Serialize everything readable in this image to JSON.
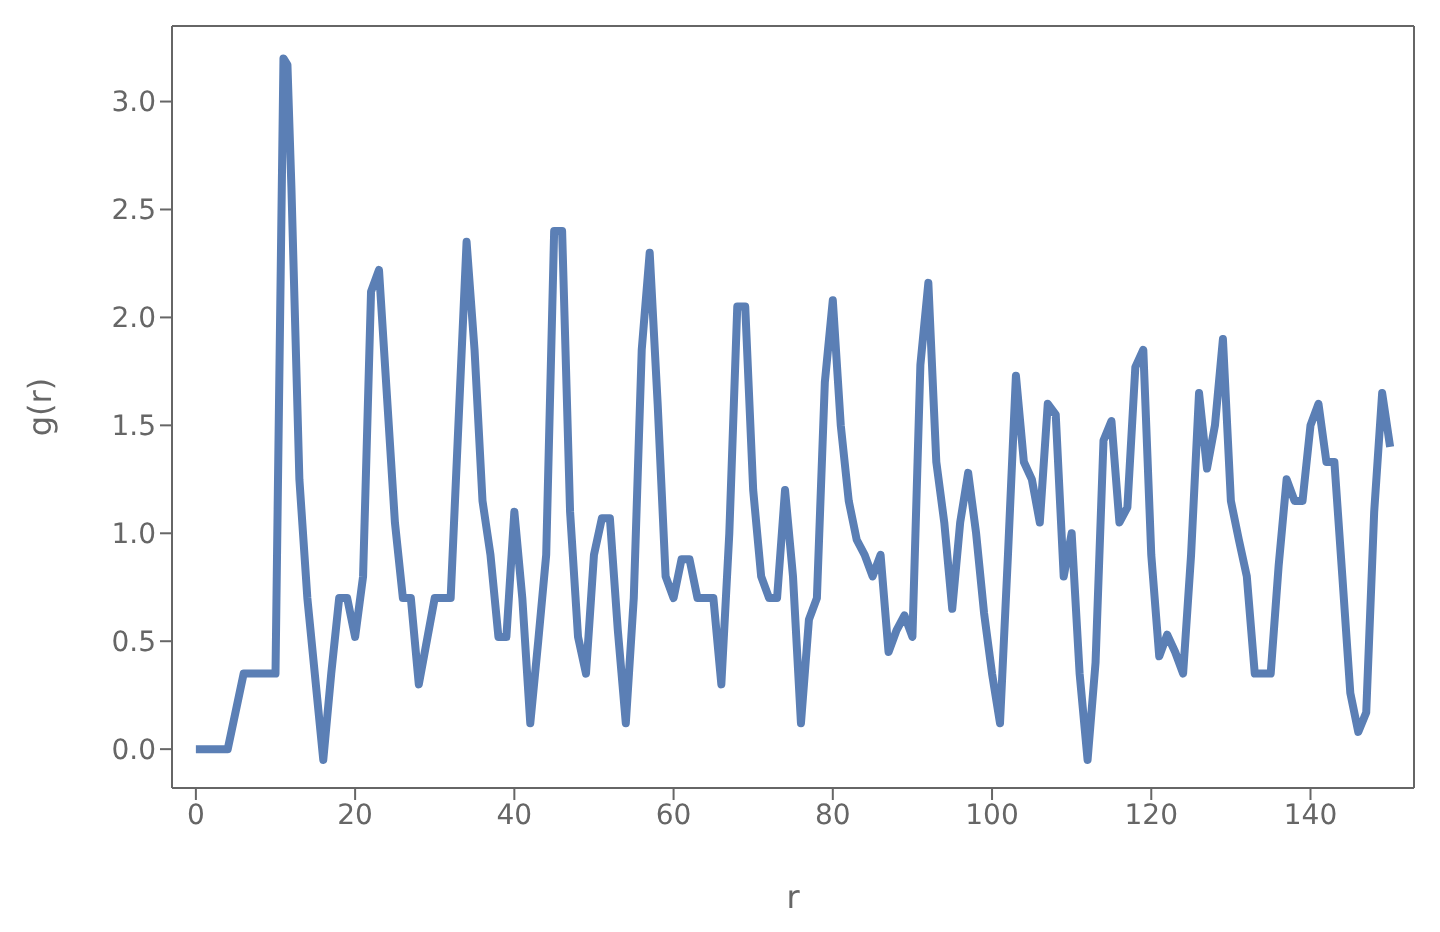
{
  "chart_data": {
    "type": "line",
    "xlabel": "r",
    "ylabel": "g(r)",
    "x": [
      0,
      4,
      6,
      10,
      11,
      11.5,
      12,
      13,
      14,
      16,
      17,
      18,
      19,
      20,
      21,
      22,
      23,
      25,
      26,
      27,
      28,
      30,
      32,
      34,
      35,
      36,
      37,
      38,
      39,
      40,
      41,
      42,
      43,
      44,
      45,
      46,
      47,
      48,
      49,
      50,
      51,
      52,
      53,
      54,
      55,
      56,
      57,
      58,
      59,
      60,
      61,
      62,
      63,
      64,
      65,
      66,
      67,
      68,
      69,
      70,
      71,
      72,
      73,
      74,
      75,
      76,
      77,
      78,
      79,
      80,
      81,
      82,
      83,
      84,
      85,
      86,
      87,
      88,
      89,
      90,
      91,
      92,
      93,
      94,
      95,
      96,
      97,
      98,
      99,
      100,
      101,
      102,
      103,
      104,
      105,
      106,
      107,
      108,
      109,
      110,
      111,
      112,
      113,
      114,
      115,
      116,
      117,
      118,
      119,
      120,
      121,
      122,
      123,
      124,
      125,
      126,
      127,
      128,
      129,
      130,
      131,
      132,
      133,
      135,
      136,
      137,
      138,
      139,
      140,
      141,
      142,
      143,
      144,
      145,
      146,
      147,
      148,
      149,
      150
    ],
    "series": [
      {
        "color": "#5b7fb5",
        "values": [
          0,
          0,
          0.35,
          0.35,
          3.2,
          3.17,
          2.6,
          1.25,
          0.7,
          -0.05,
          0.35,
          0.7,
          0.7,
          0.52,
          0.8,
          2.12,
          2.22,
          1.05,
          0.7,
          0.7,
          0.3,
          0.7,
          0.7,
          2.35,
          1.85,
          1.15,
          0.9,
          0.52,
          0.52,
          1.1,
          0.7,
          0.12,
          0.5,
          0.9,
          2.4,
          2.4,
          1.1,
          0.52,
          0.35,
          0.9,
          1.07,
          1.07,
          0.55,
          0.12,
          0.7,
          1.85,
          2.3,
          1.6,
          0.8,
          0.7,
          0.88,
          0.88,
          0.7,
          0.7,
          0.7,
          0.3,
          1.0,
          2.05,
          2.05,
          1.2,
          0.8,
          0.7,
          0.7,
          1.2,
          0.8,
          0.12,
          0.6,
          0.7,
          1.7,
          2.08,
          1.5,
          1.15,
          0.97,
          0.9,
          0.8,
          0.9,
          0.45,
          0.55,
          0.62,
          0.52,
          1.78,
          2.16,
          1.33,
          1.05,
          0.65,
          1.05,
          1.28,
          1.0,
          0.63,
          0.35,
          0.12,
          0.9,
          1.73,
          1.33,
          1.25,
          1.05,
          1.6,
          1.55,
          0.8,
          1.0,
          0.35,
          -0.05,
          0.4,
          1.43,
          1.52,
          1.05,
          1.12,
          1.77,
          1.85,
          0.9,
          0.43,
          0.53,
          0.45,
          0.35,
          0.9,
          1.65,
          1.3,
          1.5,
          1.9,
          1.15,
          0.97,
          0.8,
          0.35,
          0.35,
          0.85,
          1.25,
          1.15,
          1.15,
          1.5,
          1.6,
          1.33,
          1.33,
          0.8,
          0.26,
          0.08,
          0.17,
          1.1,
          1.65,
          1.4
        ]
      }
    ],
    "xlim": [
      -3,
      153
    ],
    "xticks": [
      0,
      20,
      40,
      60,
      80,
      100,
      120,
      140
    ],
    "ylim": [
      -0.18,
      3.35
    ],
    "yticks": [
      {
        "value": 0,
        "label": "0.0"
      },
      {
        "value": 0.5,
        "label": "0.5"
      },
      {
        "value": 1,
        "label": "1.0"
      },
      {
        "value": 1.5,
        "label": "1.5"
      },
      {
        "value": 2,
        "label": "2.0"
      },
      {
        "value": 2.5,
        "label": "2.5"
      },
      {
        "value": 3,
        "label": "3.0"
      }
    ],
    "grid": false,
    "legend": false,
    "marker": "none",
    "line_style": "solid"
  }
}
